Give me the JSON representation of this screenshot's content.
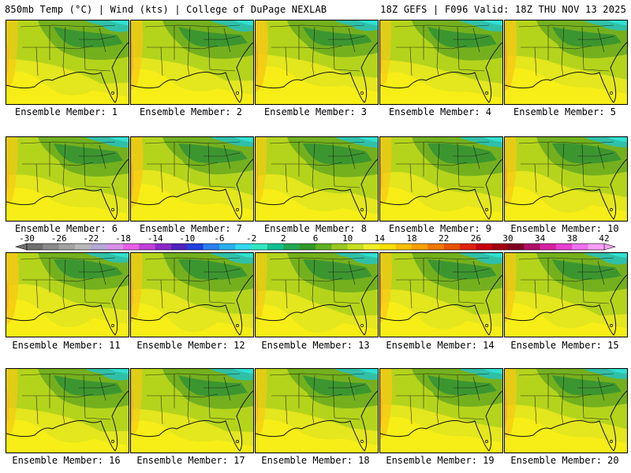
{
  "header": {
    "left": "850mb Temp (°C) | Wind (kts) | College of DuPage NEXLAB",
    "right": "18Z GEFS | F096 Valid: 18Z THU NOV 13 2025"
  },
  "members": [
    {
      "label": "Ensemble Member: 1",
      "warmth": 0.45
    },
    {
      "label": "Ensemble Member: 2",
      "warmth": 0.55
    },
    {
      "label": "Ensemble Member: 3",
      "warmth": 0.7
    },
    {
      "label": "Ensemble Member: 4",
      "warmth": 0.4
    },
    {
      "label": "Ensemble Member: 5",
      "warmth": 0.6
    },
    {
      "label": "Ensemble Member: 6",
      "warmth": 0.45
    },
    {
      "label": "Ensemble Member: 7",
      "warmth": 0.65
    },
    {
      "label": "Ensemble Member: 8",
      "warmth": 0.4
    },
    {
      "label": "Ensemble Member: 9",
      "warmth": 0.5
    },
    {
      "label": "Ensemble Member: 10",
      "warmth": 0.55
    },
    {
      "label": "Ensemble Member: 11",
      "warmth": 0.7
    },
    {
      "label": "Ensemble Member: 12",
      "warmth": 0.5
    },
    {
      "label": "Ensemble Member: 13",
      "warmth": 0.45
    },
    {
      "label": "Ensemble Member: 14",
      "warmth": 0.55
    },
    {
      "label": "Ensemble Member: 15",
      "warmth": 0.5
    },
    {
      "label": "Ensemble Member: 16",
      "warmth": 0.45
    },
    {
      "label": "Ensemble Member: 17",
      "warmth": 0.4
    },
    {
      "label": "Ensemble Member: 18",
      "warmth": 0.45
    },
    {
      "label": "Ensemble Member: 19",
      "warmth": 0.6
    },
    {
      "label": "Ensemble Member: 20",
      "warmth": 0.55
    }
  ],
  "colorbar": {
    "tick_labels": [
      "-30",
      "-26",
      "-22",
      "-18",
      "-14",
      "-10",
      "-6",
      "-2",
      "2",
      "6",
      "10",
      "14",
      "18",
      "22",
      "26",
      "30",
      "34",
      "38",
      "42"
    ],
    "colors": [
      "#707070",
      "#8a8a8a",
      "#a2a2a2",
      "#b8b8b8",
      "#b4a8d8",
      "#d890e8",
      "#e860e8",
      "#c040d8",
      "#8c28c8",
      "#5020c0",
      "#2040e0",
      "#2880f0",
      "#28b0f0",
      "#30d8f0",
      "#30e8c0",
      "#10c090",
      "#20a850",
      "#309828",
      "#60b020",
      "#98c820",
      "#c8e020",
      "#f0f028",
      "#f8e000",
      "#f8c000",
      "#f8a000",
      "#f07800",
      "#e85000",
      "#e02010",
      "#c80010",
      "#a00010",
      "#800020",
      "#b01068",
      "#d820a0",
      "#e840d0",
      "#f070f0",
      "#f8a0f8"
    ]
  }
}
